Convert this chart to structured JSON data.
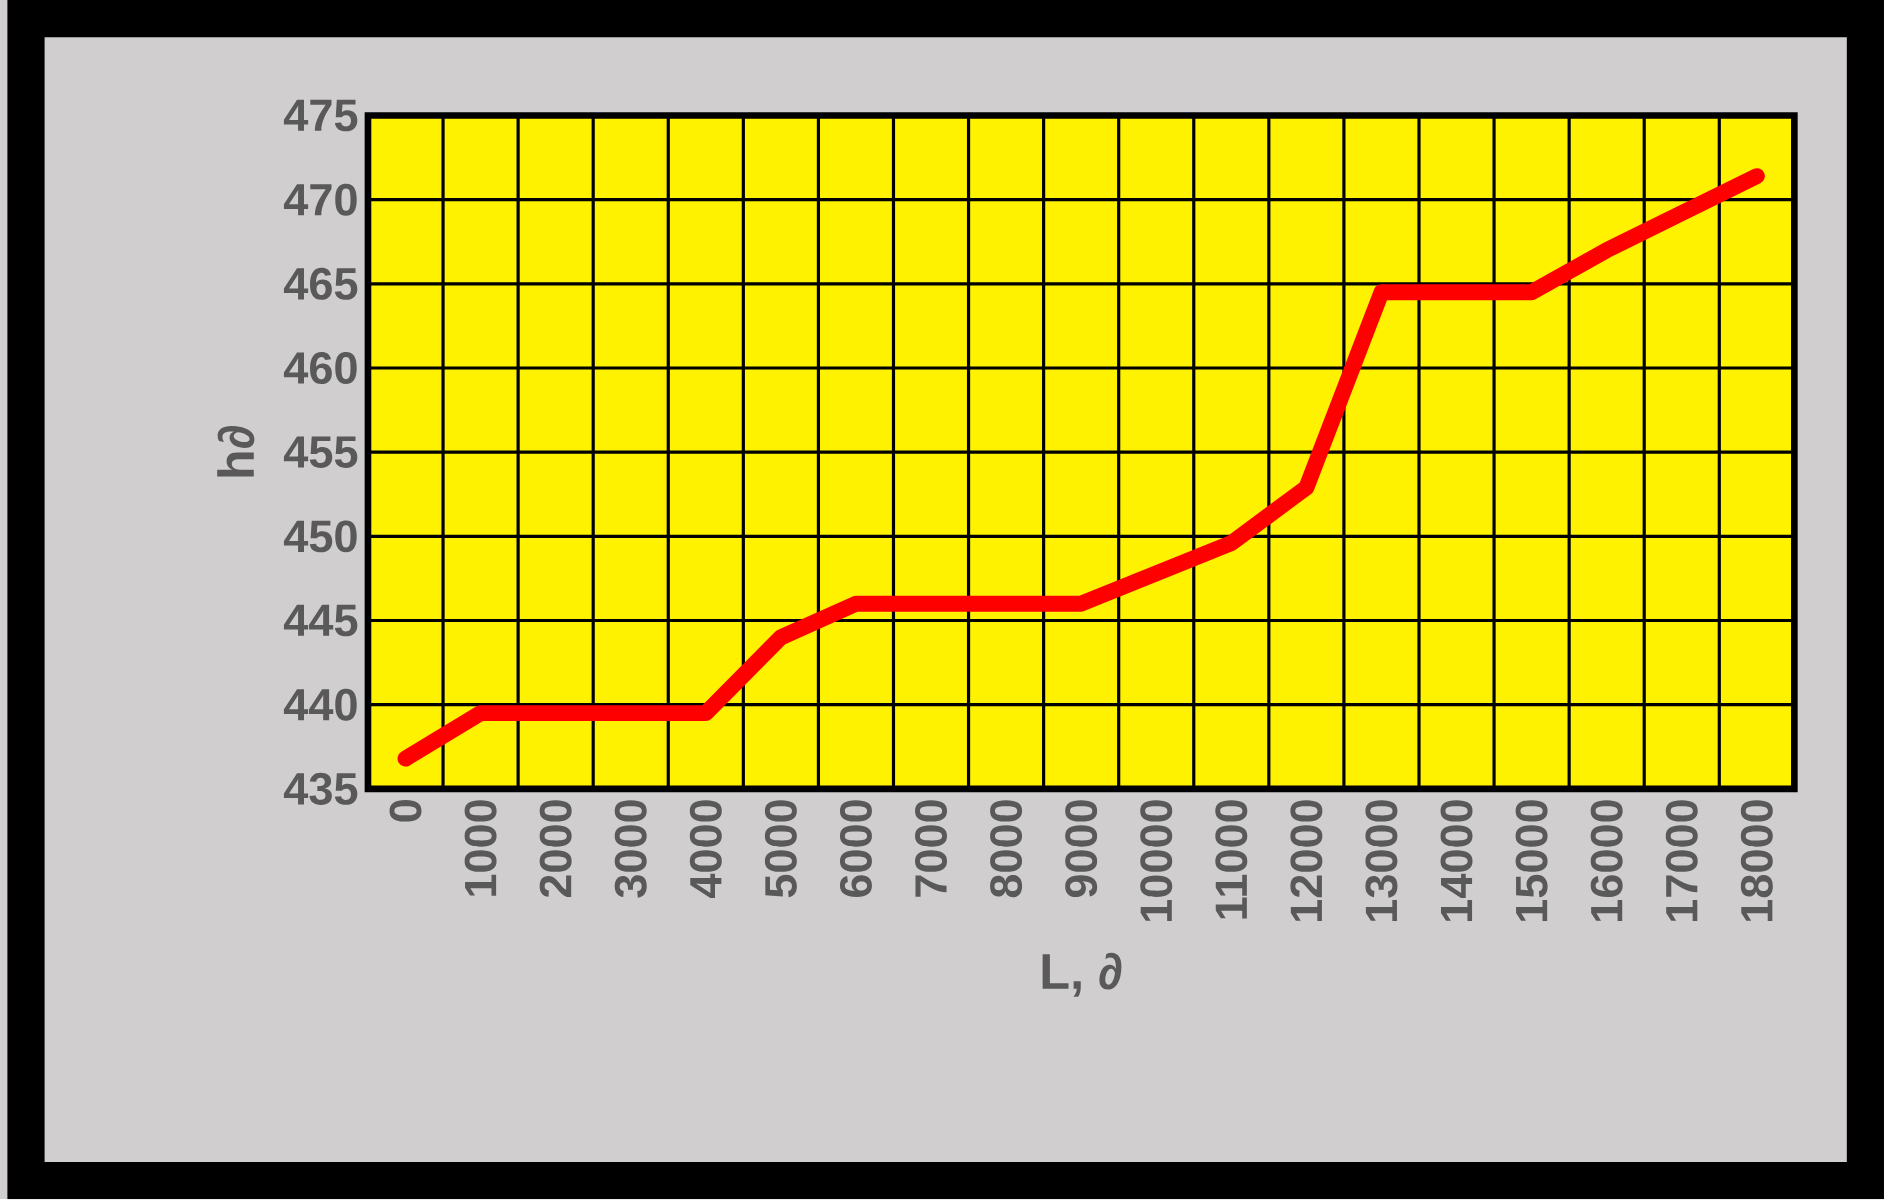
{
  "chart_data": {
    "type": "line",
    "xlabel": "L, ∂",
    "ylabel": "h∂",
    "categories": [
      "0",
      "1000",
      "2000",
      "3000",
      "4000",
      "5000",
      "6000",
      "7000",
      "8000",
      "9000",
      "10000",
      "11000",
      "12000",
      "13000",
      "14000",
      "15000",
      "16000",
      "17000",
      "18000"
    ],
    "series": [
      {
        "color": "#ff0000",
        "values": [
          436.8,
          439.5,
          439.5,
          439.5,
          439.5,
          444,
          446,
          446,
          446,
          446,
          447.8,
          449.6,
          452.9,
          464.5,
          464.5,
          464.5,
          467,
          469.2,
          471.4
        ]
      }
    ],
    "ylim": [
      435,
      475
    ],
    "yticks": [
      435,
      440,
      445,
      450,
      455,
      460,
      465,
      470,
      475
    ],
    "grid": true
  }
}
